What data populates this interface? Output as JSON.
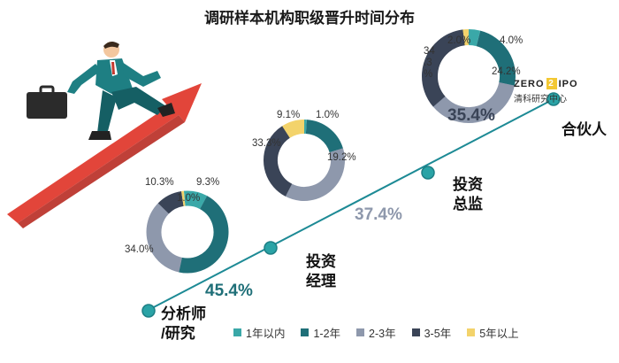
{
  "title": "调研样本机构职级晋升时间分布",
  "colors": {
    "c1": "#3aa8a8",
    "c2": "#1f6f78",
    "c3": "#8e98ac",
    "c4": "#3a4457",
    "c5": "#f3d36b",
    "arrow": "#e03b2f",
    "trend": "#1d8a95"
  },
  "legend": [
    "1年以内",
    "1-2年",
    "2-3年",
    "3-5年",
    "5年以上"
  ],
  "stages": [
    {
      "label": "分析师\n/研究",
      "big": "45.4%"
    },
    {
      "label": "投资\n经理",
      "big": "37.4%"
    },
    {
      "label": "投资\n总监",
      "big": "35.4%"
    },
    {
      "label": "合伙人"
    }
  ],
  "chart_data": [
    {
      "type": "pie",
      "categories": [
        "1年以内",
        "1-2年",
        "2-3年",
        "3-5年",
        "5年以上"
      ],
      "values": [
        9.3,
        45.4,
        34.0,
        10.3,
        1.0
      ],
      "labels": [
        "9.3%",
        "45.4%",
        "34.0%",
        "10.3%",
        "1.0%"
      ]
    },
    {
      "type": "pie",
      "categories": [
        "1年以内",
        "1-2年",
        "2-3年",
        "3-5年",
        "5年以上"
      ],
      "values": [
        1.0,
        19.2,
        37.4,
        33.3,
        9.1
      ],
      "labels": [
        "1.0%",
        "19.2%",
        "37.4%",
        "33.3%",
        "9.1%"
      ]
    },
    {
      "type": "pie",
      "categories": [
        "1年以内",
        "1-2年",
        "2-3年",
        "3-5年",
        "5年以上"
      ],
      "values": [
        4.0,
        24.2,
        35.4,
        34.3,
        2.0
      ],
      "labels": [
        "4.0%",
        "24.2%",
        "35.4%",
        "34\n.3\n%",
        "2.0%"
      ]
    }
  ],
  "logo": {
    "brand_left": "ZERO",
    "brand_mid": "2",
    "brand_right": "IPO",
    "sub": "清科研究中心"
  }
}
